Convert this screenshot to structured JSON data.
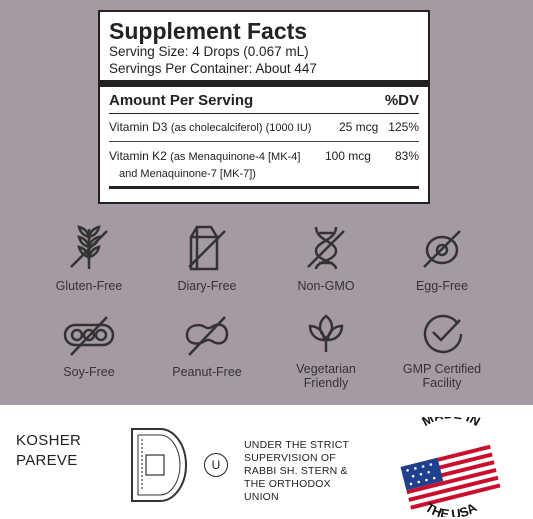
{
  "facts": {
    "title": "Supplement Facts",
    "serving_size": "Serving Size: 4 Drops (0.067 mL)",
    "servings": "Servings Per Container: About 447",
    "amount_header": "Amount Per Serving",
    "dv_header": "%DV",
    "rows": [
      {
        "name": "Vitamin D3",
        "detail": "(as cholecalciferol)  (1000 IU)",
        "amount": "25 mcg",
        "dv": "125%"
      },
      {
        "name": "Vitamin K2",
        "detail": "(as Menaquinone-4 [MK-4]",
        "detail2": "and Menaquinone-7 [MK-7])",
        "amount": "100 mcg",
        "dv": "83%"
      }
    ]
  },
  "badges": [
    {
      "label": "Gluten-Free",
      "icon": "wheat-crossed-icon"
    },
    {
      "label": "Diary-Free",
      "icon": "milk-carton-crossed-icon"
    },
    {
      "label": "Non-GMO",
      "icon": "dna-crossed-icon"
    },
    {
      "label": "Egg-Free",
      "icon": "egg-crossed-icon"
    },
    {
      "label": "Soy-Free",
      "icon": "soybean-crossed-icon"
    },
    {
      "label": "Peanut-Free",
      "icon": "peanut-crossed-icon"
    },
    {
      "label": "Vegetarian Friendly",
      "l1": "Vegetarian",
      "l2": "Friendly",
      "icon": "leaf-icon"
    },
    {
      "label": "GMP Certified Facility",
      "l1": "GMP Certified",
      "l2": "Facility",
      "icon": "check-circle-icon"
    }
  ],
  "kosher": {
    "l1": "KOSHER",
    "l2": "PAREVE",
    "u_symbol": "U"
  },
  "supervision": {
    "l1": "UNDER THE STRICT",
    "l2": "SUPERVISION OF",
    "l3": "RABBI SH. STERN &",
    "l4": "THE ORTHODOX",
    "l5": "UNION"
  },
  "usa_badge": {
    "top": "MADE IN",
    "bottom": "THE USA"
  },
  "colors": {
    "background": "#a59aa4",
    "icon": "#333333",
    "flag_red": "#c8102e",
    "flag_blue": "#1f3f8f"
  }
}
